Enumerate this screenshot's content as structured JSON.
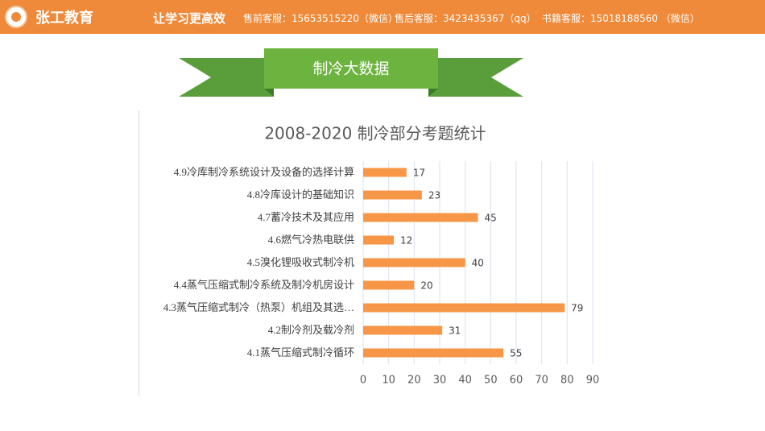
{
  "header": {
    "logo": "张工教育",
    "slogan": "让学习更高效",
    "contacts": [
      "售前客服：15653515220（微信）",
      "售后客服：3423435367（qq）",
      "书籍客服：15018188560 （微信）"
    ]
  },
  "banner": "制冷大数据",
  "chart_data": {
    "type": "bar",
    "orientation": "horizontal",
    "title": "2008-2020 制冷部分考题统计",
    "categories": [
      "4.9冷库制冷系统设计及设备的选择计算",
      "4.8冷库设计的基础知识",
      "4.7蓄冷技术及其应用",
      "4.6燃气冷热电联供",
      "4.5溴化锂吸收式制冷机",
      "4.4蒸气压缩式制冷系统及制冷机房设计",
      "4.3蒸气压缩式制冷（热泵）机组及其选…",
      "4.2制冷剂及载冷剂",
      "4.1蒸气压缩式制冷循环"
    ],
    "values": [
      17,
      23,
      45,
      12,
      40,
      20,
      79,
      31,
      55
    ],
    "color": "#f79646",
    "xlim": [
      0,
      90
    ],
    "xticks": [
      0,
      10,
      20,
      30,
      40,
      50,
      60,
      70,
      80,
      90
    ],
    "grid": true
  }
}
